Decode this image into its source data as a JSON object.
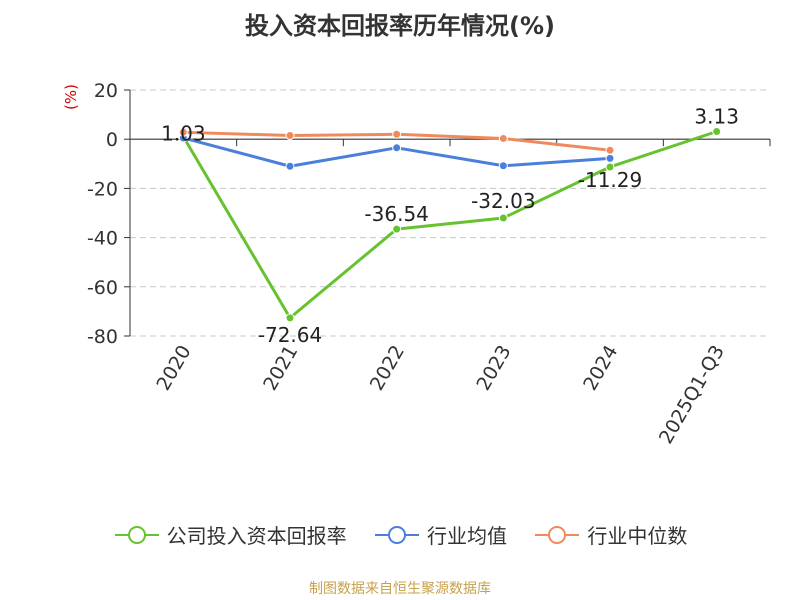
{
  "title": "投入资本回报率历年情况(%)",
  "source": "制图数据来自恒生聚源数据库",
  "chart_data": {
    "type": "line",
    "title": "投入资本回报率历年情况(%)",
    "ylabel": "(%)",
    "xlabel": "",
    "categories": [
      "2020",
      "2021",
      "2022",
      "2023",
      "2024",
      "2025Q1-Q3"
    ],
    "ylim": [
      -80,
      20
    ],
    "yticks": [
      20,
      0,
      -20,
      -40,
      -60,
      -80
    ],
    "grid": true,
    "legend_position": "bottom",
    "series": [
      {
        "name": "公司投入资本回报率",
        "color": "#66c22e",
        "values": [
          1.03,
          -72.64,
          -36.54,
          -32.03,
          -11.29,
          3.13
        ],
        "labels": [
          "1.03",
          "-72.64",
          "-36.54",
          "-32.03",
          "-11.29",
          "3.13"
        ]
      },
      {
        "name": "行业均值",
        "color": "#4a7fdb",
        "values": [
          0.5,
          -11.0,
          -3.5,
          -10.8,
          -7.8,
          null
        ]
      },
      {
        "name": "行业中位数",
        "color": "#f08a5d",
        "values": [
          2.8,
          1.5,
          2.0,
          0.3,
          -4.5,
          null
        ]
      }
    ]
  }
}
